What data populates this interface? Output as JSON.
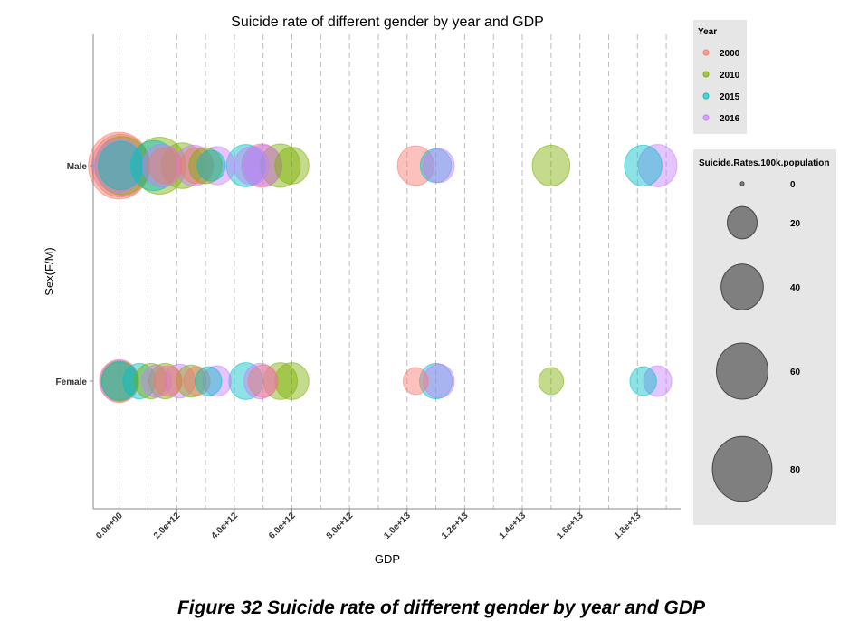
{
  "chart_data": {
    "type": "scatter",
    "subtype": "bubble",
    "title": "Suicide rate of different gender by year and GDP",
    "xlabel": "GDP",
    "ylabel": "Sex(F/M)",
    "x_ticks": [
      {
        "value": 0.0,
        "label": "0.0e+00"
      },
      {
        "value": 2000000000000.0,
        "label": "2.0e+12"
      },
      {
        "value": 4000000000000.0,
        "label": "4.0e+12"
      },
      {
        "value": 6000000000000.0,
        "label": "6.0e+12"
      },
      {
        "value": 8000000000000.0,
        "label": "8.0e+12"
      },
      {
        "value": 10000000000000.0,
        "label": "1.0e+13"
      },
      {
        "value": 12000000000000.0,
        "label": "1.2e+13"
      },
      {
        "value": 14000000000000.0,
        "label": "1.4e+13"
      },
      {
        "value": 16000000000000.0,
        "label": "1.6e+13"
      },
      {
        "value": 18000000000000.0,
        "label": "1.8e+13"
      }
    ],
    "xlim": [
      -900000000000.0,
      19500000000000.0
    ],
    "y_categories": [
      "Female",
      "Male"
    ],
    "grid": "vertical dashed",
    "color_legend": {
      "title": "Year",
      "position": "right",
      "entries": [
        {
          "label": "2000",
          "color": "#F8766D"
        },
        {
          "label": "2010",
          "color": "#7CAE00"
        },
        {
          "label": "2015",
          "color": "#00BFC4"
        },
        {
          "label": "2016",
          "color": "#C77CFF"
        }
      ]
    },
    "size_legend": {
      "title": "Suicide.Rates.100k.population",
      "position": "right",
      "entries": [
        {
          "label": "0",
          "value": 0
        },
        {
          "label": "20",
          "value": 20
        },
        {
          "label": "40",
          "value": 40
        },
        {
          "label": "60",
          "value": 60
        },
        {
          "label": "80",
          "value": 80
        }
      ]
    },
    "points": [
      {
        "sex": "Male",
        "year": "2000",
        "gdp": 0.0,
        "rate": 85
      },
      {
        "sex": "Male",
        "year": "2000",
        "gdp": 50000000000.0,
        "rate": 75
      },
      {
        "sex": "Male",
        "year": "2010",
        "gdp": 100000000000.0,
        "rate": 65
      },
      {
        "sex": "Male",
        "year": "2016",
        "gdp": 0.0,
        "rate": 55
      },
      {
        "sex": "Male",
        "year": "2015",
        "gdp": 50000000000.0,
        "rate": 45
      },
      {
        "sex": "Male",
        "year": "2010",
        "gdp": 1400000000000.0,
        "rate": 62
      },
      {
        "sex": "Male",
        "year": "2015",
        "gdp": 1200000000000.0,
        "rate": 48
      },
      {
        "sex": "Male",
        "year": "2016",
        "gdp": 1500000000000.0,
        "rate": 35
      },
      {
        "sex": "Male",
        "year": "2000",
        "gdp": 1600000000000.0,
        "rate": 25
      },
      {
        "sex": "Male",
        "year": "2010",
        "gdp": 2200000000000.0,
        "rate": 40
      },
      {
        "sex": "Male",
        "year": "2016",
        "gdp": 2600000000000.0,
        "rate": 32
      },
      {
        "sex": "Male",
        "year": "2000",
        "gdp": 2700000000000.0,
        "rate": 25
      },
      {
        "sex": "Male",
        "year": "2010",
        "gdp": 3000000000000.0,
        "rate": 25
      },
      {
        "sex": "Male",
        "year": "2015",
        "gdp": 3200000000000.0,
        "rate": 18
      },
      {
        "sex": "Male",
        "year": "2016",
        "gdp": 3400000000000.0,
        "rate": 28
      },
      {
        "sex": "Male",
        "year": "2015",
        "gdp": 4400000000000.0,
        "rate": 34
      },
      {
        "sex": "Male",
        "year": "2016",
        "gdp": 4600000000000.0,
        "rate": 28
      },
      {
        "sex": "Male",
        "year": "2000",
        "gdp": 4950000000000.0,
        "rate": 36
      },
      {
        "sex": "Male",
        "year": "2016",
        "gdp": 5000000000000.0,
        "rate": 32
      },
      {
        "sex": "Male",
        "year": "2010",
        "gdp": 5600000000000.0,
        "rate": 36
      },
      {
        "sex": "Male",
        "year": "2010",
        "gdp": 6000000000000.0,
        "rate": 26
      },
      {
        "sex": "Male",
        "year": "2000",
        "gdp": 10300000000000.0,
        "rate": 30
      },
      {
        "sex": "Male",
        "year": "2015",
        "gdp": 11000000000000.0,
        "rate": 22
      },
      {
        "sex": "Male",
        "year": "2016",
        "gdp": 11100000000000.0,
        "rate": 22
      },
      {
        "sex": "Male",
        "year": "2010",
        "gdp": 15000000000000.0,
        "rate": 32
      },
      {
        "sex": "Male",
        "year": "2015",
        "gdp": 18200000000000.0,
        "rate": 32
      },
      {
        "sex": "Male",
        "year": "2016",
        "gdp": 18700000000000.0,
        "rate": 34
      },
      {
        "sex": "Female",
        "year": "2000",
        "gdp": 0.0,
        "rate": 35
      },
      {
        "sex": "Female",
        "year": "2010",
        "gdp": 20000000000.0,
        "rate": 30
      },
      {
        "sex": "Female",
        "year": "2015",
        "gdp": 0.0,
        "rate": 28
      },
      {
        "sex": "Female",
        "year": "2016",
        "gdp": 0.0,
        "rate": 32
      },
      {
        "sex": "Female",
        "year": "2015",
        "gdp": 700000000000.0,
        "rate": 24
      },
      {
        "sex": "Female",
        "year": "2010",
        "gdp": 1100000000000.0,
        "rate": 24
      },
      {
        "sex": "Female",
        "year": "2016",
        "gdp": 1300000000000.0,
        "rate": 20
      },
      {
        "sex": "Female",
        "year": "2010",
        "gdp": 1600000000000.0,
        "rate": 24
      },
      {
        "sex": "Female",
        "year": "2000",
        "gdp": 1700000000000.0,
        "rate": 18
      },
      {
        "sex": "Female",
        "year": "2016",
        "gdp": 2100000000000.0,
        "rate": 22
      },
      {
        "sex": "Female",
        "year": "2010",
        "gdp": 2500000000000.0,
        "rate": 20
      },
      {
        "sex": "Female",
        "year": "2000",
        "gdp": 2700000000000.0,
        "rate": 16
      },
      {
        "sex": "Female",
        "year": "2015",
        "gdp": 3100000000000.0,
        "rate": 16
      },
      {
        "sex": "Female",
        "year": "2016",
        "gdp": 3400000000000.0,
        "rate": 18
      },
      {
        "sex": "Female",
        "year": "2015",
        "gdp": 4400000000000.0,
        "rate": 26
      },
      {
        "sex": "Female",
        "year": "2016",
        "gdp": 4900000000000.0,
        "rate": 24
      },
      {
        "sex": "Female",
        "year": "2000",
        "gdp": 5000000000000.0,
        "rate": 20
      },
      {
        "sex": "Female",
        "year": "2010",
        "gdp": 5600000000000.0,
        "rate": 26
      },
      {
        "sex": "Female",
        "year": "2010",
        "gdp": 6000000000000.0,
        "rate": 26
      },
      {
        "sex": "Female",
        "year": "2000",
        "gdp": 10300000000000.0,
        "rate": 14
      },
      {
        "sex": "Female",
        "year": "2015",
        "gdp": 11000000000000.0,
        "rate": 24
      },
      {
        "sex": "Female",
        "year": "2016",
        "gdp": 11100000000000.0,
        "rate": 22
      },
      {
        "sex": "Female",
        "year": "2010",
        "gdp": 15000000000000.0,
        "rate": 14
      },
      {
        "sex": "Female",
        "year": "2015",
        "gdp": 18200000000000.0,
        "rate": 16
      },
      {
        "sex": "Female",
        "year": "2016",
        "gdp": 18700000000000.0,
        "rate": 18
      }
    ]
  },
  "figure_caption": "Figure 32 Suicide rate of different gender by year and GDP"
}
